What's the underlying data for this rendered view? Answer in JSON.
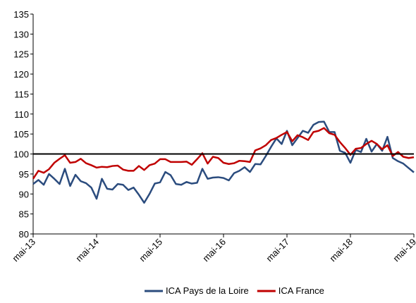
{
  "chart_data": {
    "type": "line",
    "categories": [
      "mai-13",
      null,
      null,
      null,
      null,
      null,
      null,
      null,
      null,
      null,
      null,
      null,
      "mai-14",
      null,
      null,
      null,
      null,
      null,
      null,
      null,
      null,
      null,
      null,
      null,
      "mai-15",
      null,
      null,
      null,
      null,
      null,
      null,
      null,
      null,
      null,
      null,
      null,
      "mai-16",
      null,
      null,
      null,
      null,
      null,
      null,
      null,
      null,
      null,
      null,
      null,
      "mai-17",
      null,
      null,
      null,
      null,
      null,
      null,
      null,
      null,
      null,
      null,
      null,
      "mai-18",
      null,
      null,
      null,
      null,
      null,
      null,
      null,
      null,
      null,
      null,
      null,
      "mai-19"
    ],
    "series": [
      {
        "name": "ICA Pays de la Loire",
        "color": "#2b4c7e",
        "values": [
          92.5,
          93.5,
          92.3,
          95,
          93.8,
          92.5,
          96.3,
          92,
          94.8,
          93.2,
          92.7,
          91.6,
          88.8,
          93.8,
          91.3,
          91.1,
          92.5,
          92.3,
          91,
          91.6,
          89.8,
          87.8,
          90,
          92.6,
          92.9,
          95.5,
          94.7,
          92.5,
          92.3,
          93,
          92.6,
          92.8,
          96.3,
          93.8,
          94.1,
          94.2,
          94,
          93.4,
          95.2,
          95.8,
          96.7,
          95.5,
          97.5,
          97.4,
          99.5,
          101.8,
          103.9,
          102.5,
          105.8,
          102.2,
          104,
          105.8,
          105.3,
          107.3,
          108,
          108.1,
          105.5,
          105.5,
          100.8,
          100.3,
          97.8,
          101,
          100.5,
          103.8,
          100.6,
          102.5,
          100.8,
          104.3,
          99,
          98.2,
          97.6,
          96.5,
          95.4
        ]
      },
      {
        "name": "ICA France",
        "color": "#c00000",
        "values": [
          93.8,
          95.8,
          95.3,
          96.2,
          97.8,
          98.8,
          99.7,
          97.8,
          98,
          98.8,
          97.7,
          97.2,
          96.6,
          96.8,
          96.7,
          97,
          97.1,
          96.1,
          95.8,
          95.8,
          97,
          96,
          97.2,
          97.6,
          98.7,
          98.7,
          98,
          98,
          98,
          98.1,
          97.3,
          98.7,
          100.2,
          97.6,
          99.3,
          99,
          97.8,
          97.5,
          97.7,
          98.3,
          98.2,
          98,
          100.9,
          101.4,
          102.2,
          103.5,
          104,
          104.8,
          105.5,
          103.2,
          104.7,
          104.2,
          103.5,
          105.5,
          105.8,
          106.5,
          105.2,
          104.8,
          103,
          101.5,
          99.8,
          101.3,
          101.5,
          102.5,
          103.3,
          102.5,
          101.2,
          102.2,
          99.5,
          100.5,
          99.3,
          99,
          99.2
        ]
      }
    ],
    "ylim": [
      80,
      135
    ],
    "yticks": [
      80,
      85,
      90,
      95,
      100,
      105,
      110,
      115,
      120,
      125,
      130,
      135
    ],
    "reference_line": 100,
    "grid": false,
    "legend": "bottom"
  }
}
